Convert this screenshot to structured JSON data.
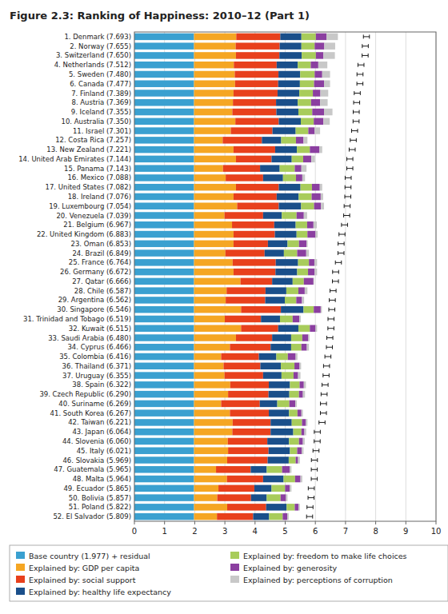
{
  "chart_data": {
    "type": "bar",
    "orientation": "horizontal",
    "stacked": true,
    "grid": true,
    "legend": "bottom",
    "title": "Figure 2.3: Ranking of Happiness: 2010–12 (Part 1)",
    "categories": [
      "1. Denmark (7.693)",
      "2. Norway (7.655)",
      "3. Switzerland (7.650)",
      "4. Netherlands (7.512)",
      "5. Sweden (7.480)",
      "6. Canada (7.477)",
      "7. Finland (7.389)",
      "8. Austria (7.369)",
      "9. Iceland (7.355)",
      "10. Australia (7.350)",
      "11. Israel (7.301)",
      "12. Costa Rica (7.257)",
      "13. New Zealand (7.221)",
      "14. United Arab Emirates (7.144)",
      "15. Panama (7.143)",
      "16. Mexico (7.088)",
      "17. United States (7.082)",
      "18. Ireland (7.076)",
      "19. Luxembourg (7.054)",
      "20. Venezuela (7.039)",
      "21. Belgium (6.967)",
      "22. United Kingdom (6.883)",
      "23. Oman (6.853)",
      "24. Brazil (6.849)",
      "25. France (6.764)",
      "26. Germany (6.672)",
      "27. Qatar (6.666)",
      "28. Chile (6.587)",
      "29. Argentina (6.562)",
      "30. Singapore (6.546)",
      "31. Trinidad and Tobago (6.519)",
      "32. Kuwait (6.515)",
      "33. Saudi Arabia (6.480)",
      "34. Cyprus (6.466)",
      "35. Colombia (6.416)",
      "36. Thailand (6.371)",
      "37. Uruguay (6.355)",
      "38. Spain (6.322)",
      "39. Czech Republic (6.290)",
      "40. Suriname (6.269)",
      "41. South Korea (6.267)",
      "42. Taiwan (6.221)",
      "43. Japan (6.064)",
      "44. Slovenia (6.060)",
      "45. Italy (6.021)",
      "46. Slovakia (5.969)",
      "47. Guatemala (5.965)",
      "48. Malta (5.964)",
      "49. Ecuador (5.865)",
      "50. Bolivia (5.857)",
      "51. Poland (5.822)",
      "52. El Salvador (5.809)"
    ],
    "series": [
      {
        "name": "Base country (1.977) + residual",
        "color": "#3AA0D0",
        "values": [
          1.977,
          1.977,
          1.977,
          1.977,
          1.977,
          1.977,
          1.977,
          1.977,
          1.977,
          1.977,
          1.977,
          1.977,
          1.977,
          1.977,
          1.977,
          1.977,
          1.977,
          1.977,
          1.977,
          1.977,
          1.977,
          1.977,
          1.977,
          1.977,
          1.977,
          1.977,
          1.977,
          1.977,
          1.977,
          1.977,
          1.977,
          1.977,
          1.977,
          1.977,
          1.977,
          1.977,
          1.977,
          1.977,
          1.977,
          1.977,
          1.977,
          1.977,
          1.977,
          1.977,
          1.977,
          1.977,
          1.977,
          1.977,
          1.977,
          1.977,
          1.977,
          1.977
        ]
      },
      {
        "name": "Explained by: GDP per capita",
        "color": "#F5A623",
        "values": [
          1.4,
          1.38,
          1.39,
          1.32,
          1.35,
          1.36,
          1.31,
          1.29,
          1.27,
          1.37,
          1.22,
          0.95,
          1.31,
          1.39,
          0.96,
          1.05,
          1.39,
          1.31,
          1.43,
          1.01,
          1.26,
          1.31,
          1.31,
          1.04,
          1.28,
          1.31,
          1.54,
          1.08,
          1.05,
          1.56,
          1.02,
          1.56,
          1.39,
          1.19,
          0.9,
          0.98,
          1.01,
          1.2,
          1.13,
          0.9,
          1.19,
          1.28,
          1.27,
          1.12,
          1.13,
          1.1,
          0.73,
          1.09,
          0.81,
          0.77,
          1.1,
          0.76
        ]
      },
      {
        "name": "Explained by: social support",
        "color": "#E8401C",
        "values": [
          1.46,
          1.46,
          1.44,
          1.42,
          1.45,
          1.43,
          1.46,
          1.43,
          1.46,
          1.44,
          1.38,
          1.3,
          1.38,
          1.18,
          1.23,
          1.24,
          1.42,
          1.43,
          1.38,
          1.28,
          1.4,
          1.37,
          1.14,
          1.3,
          1.43,
          1.39,
          1.05,
          1.29,
          1.31,
          1.32,
          1.2,
          1.23,
          1.2,
          1.35,
          1.25,
          1.22,
          1.28,
          1.28,
          1.34,
          1.28,
          1.29,
          1.26,
          1.27,
          1.31,
          1.34,
          1.34,
          1.15,
          1.2,
          1.19,
          1.12,
          1.29,
          1.2
        ]
      },
      {
        "name": "Explained by: healthy life expectancy",
        "color": "#1A4F8A",
        "values": [
          0.7,
          0.72,
          0.74,
          0.7,
          0.72,
          0.72,
          0.72,
          0.72,
          0.73,
          0.73,
          0.77,
          0.64,
          0.72,
          0.67,
          0.65,
          0.66,
          0.72,
          0.73,
          0.74,
          0.62,
          0.71,
          0.72,
          0.65,
          0.64,
          0.74,
          0.72,
          0.68,
          0.69,
          0.65,
          0.75,
          0.63,
          0.67,
          0.63,
          0.68,
          0.58,
          0.68,
          0.61,
          0.7,
          0.69,
          0.58,
          0.67,
          0.7,
          0.75,
          0.72,
          0.71,
          0.7,
          0.53,
          0.68,
          0.57,
          0.52,
          0.68,
          0.53
        ]
      },
      {
        "name": "Explained by: freedom to make life choices",
        "color": "#A8CC5B",
        "values": [
          0.48,
          0.44,
          0.47,
          0.43,
          0.48,
          0.47,
          0.45,
          0.44,
          0.46,
          0.43,
          0.42,
          0.49,
          0.43,
          0.38,
          0.5,
          0.43,
          0.38,
          0.43,
          0.43,
          0.49,
          0.38,
          0.36,
          0.38,
          0.44,
          0.36,
          0.36,
          0.37,
          0.4,
          0.38,
          0.34,
          0.42,
          0.38,
          0.37,
          0.34,
          0.38,
          0.45,
          0.4,
          0.32,
          0.32,
          0.4,
          0.28,
          0.34,
          0.27,
          0.33,
          0.24,
          0.23,
          0.51,
          0.38,
          0.45,
          0.46,
          0.27,
          0.45
        ]
      },
      {
        "name": "Explained by: generosity",
        "color": "#8B3FA0",
        "values": [
          0.35,
          0.32,
          0.25,
          0.25,
          0.25,
          0.33,
          0.25,
          0.3,
          0.39,
          0.32,
          0.21,
          0.25,
          0.32,
          0.27,
          0.22,
          0.21,
          0.26,
          0.3,
          0.23,
          0.24,
          0.21,
          0.27,
          0.25,
          0.3,
          0.18,
          0.22,
          0.32,
          0.21,
          0.19,
          0.23,
          0.22,
          0.19,
          0.2,
          0.18,
          0.26,
          0.17,
          0.15,
          0.14,
          0.13,
          0.2,
          0.13,
          0.13,
          0.1,
          0.13,
          0.15,
          0.08,
          0.25,
          0.18,
          0.15,
          0.18,
          0.12,
          0.15
        ]
      },
      {
        "name": "Explained by: perceptions of corruption",
        "color": "#C8C8C8",
        "values": [
          0.38,
          0.36,
          0.38,
          0.3,
          0.26,
          0.2,
          0.26,
          0.25,
          0.28,
          0.21,
          0.18,
          0.13,
          0.09,
          0.12,
          0.17,
          0.09,
          0.08,
          0.08,
          0.1,
          0.11,
          0.11,
          0.07,
          0.04,
          0.09,
          0.09,
          0.08,
          0.02,
          0.09,
          0.07,
          0.04,
          0.05,
          0.05,
          0.04,
          0.07,
          0.06,
          0.05,
          0.08,
          0.07,
          0.07,
          0.05,
          0.05,
          0.05,
          0.06,
          0.06,
          0.06,
          0.06,
          0.06,
          0.06,
          0.06,
          0.05,
          0.05,
          0.05
        ]
      }
    ],
    "error_bars": {
      "values": [
        7.693,
        7.655,
        7.65,
        7.512,
        7.48,
        7.477,
        7.389,
        7.369,
        7.355,
        7.35,
        7.301,
        7.257,
        7.221,
        7.144,
        7.143,
        7.088,
        7.082,
        7.076,
        7.054,
        7.039,
        6.967,
        6.883,
        6.853,
        6.849,
        6.764,
        6.672,
        6.666,
        6.587,
        6.562,
        6.546,
        6.519,
        6.515,
        6.48,
        6.466,
        6.416,
        6.371,
        6.355,
        6.322,
        6.29,
        6.269,
        6.267,
        6.221,
        6.064,
        6.06,
        6.021,
        5.969,
        5.965,
        5.964,
        5.865,
        5.857,
        5.822,
        5.809
      ],
      "errors": [
        0.1,
        0.1,
        0.1,
        0.1,
        0.1,
        0.1,
        0.1,
        0.1,
        0.1,
        0.1,
        0.1,
        0.1,
        0.1,
        0.1,
        0.1,
        0.1,
        0.1,
        0.1,
        0.1,
        0.1,
        0.1,
        0.1,
        0.1,
        0.1,
        0.1,
        0.1,
        0.1,
        0.1,
        0.1,
        0.1,
        0.1,
        0.1,
        0.1,
        0.1,
        0.1,
        0.1,
        0.1,
        0.1,
        0.1,
        0.1,
        0.1,
        0.1,
        0.1,
        0.1,
        0.1,
        0.1,
        0.1,
        0.1,
        0.1,
        0.1,
        0.1,
        0.1
      ]
    },
    "xlim": [
      0,
      10
    ],
    "xticks": [
      0,
      1,
      2,
      3,
      4,
      5,
      6,
      7,
      8,
      9,
      10
    ]
  }
}
